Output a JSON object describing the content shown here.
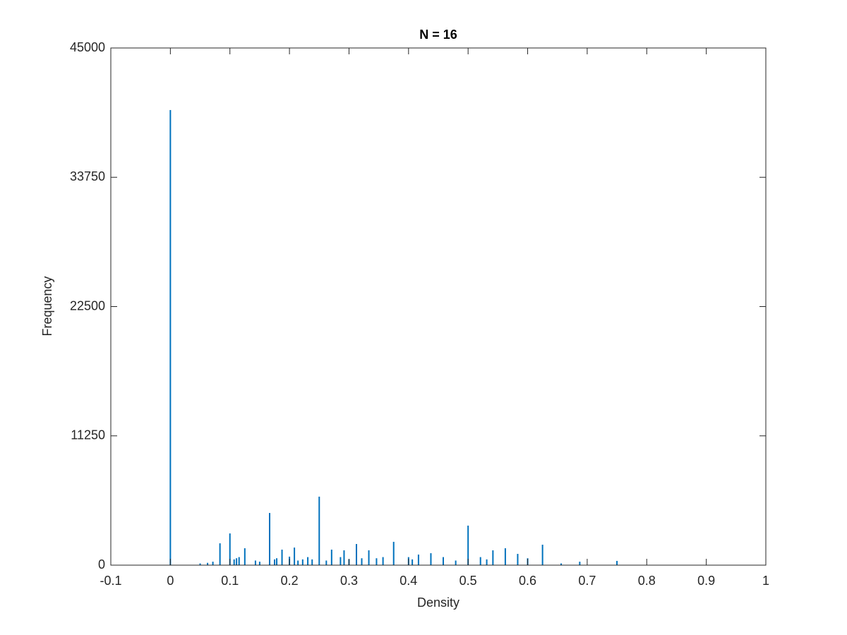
{
  "chart_data": {
    "type": "bar",
    "title": "N = 16",
    "x_label": "Density",
    "y_label": "Frequency",
    "color": "#0072bd",
    "x": [
      0,
      0.05,
      0.0625,
      0.0714,
      0.0833,
      0.1,
      0.1071,
      0.1111,
      0.1154,
      0.125,
      0.1429,
      0.15,
      0.1667,
      0.175,
      0.1786,
      0.1875,
      0.2,
      0.2083,
      0.2143,
      0.2222,
      0.2308,
      0.2381,
      0.25,
      0.2619,
      0.2708,
      0.2857,
      0.2917,
      0.3,
      0.3125,
      0.3214,
      0.3333,
      0.3462,
      0.3571,
      0.375,
      0.4,
      0.4063,
      0.4167,
      0.4375,
      0.4583,
      0.4792,
      0.5,
      0.5208,
      0.5313,
      0.5417,
      0.5625,
      0.5833,
      0.6,
      0.625,
      0.6563,
      0.6875,
      0.75
    ],
    "values": [
      39600,
      150,
      200,
      300,
      1900,
      2760,
      500,
      600,
      700,
      1470,
      400,
      300,
      4540,
      500,
      600,
      1350,
      740,
      1530,
      400,
      500,
      700,
      500,
      5960,
      400,
      1350,
      700,
      1290,
      500,
      1840,
      600,
      1290,
      600,
      700,
      2030,
      700,
      500,
      920,
      1040,
      700,
      400,
      3440,
      700,
      500,
      1290,
      1470,
      980,
      600,
      1780,
      150,
      300,
      370
    ],
    "xlim": [
      -0.1,
      1
    ],
    "xticks": [
      -0.1,
      0,
      0.1,
      0.2,
      0.3,
      0.4,
      0.5,
      0.6,
      0.7,
      0.8,
      0.9,
      1
    ],
    "ylim": [
      0,
      45000
    ],
    "yticks": [
      0,
      11250,
      22500,
      33750,
      45000
    ]
  }
}
